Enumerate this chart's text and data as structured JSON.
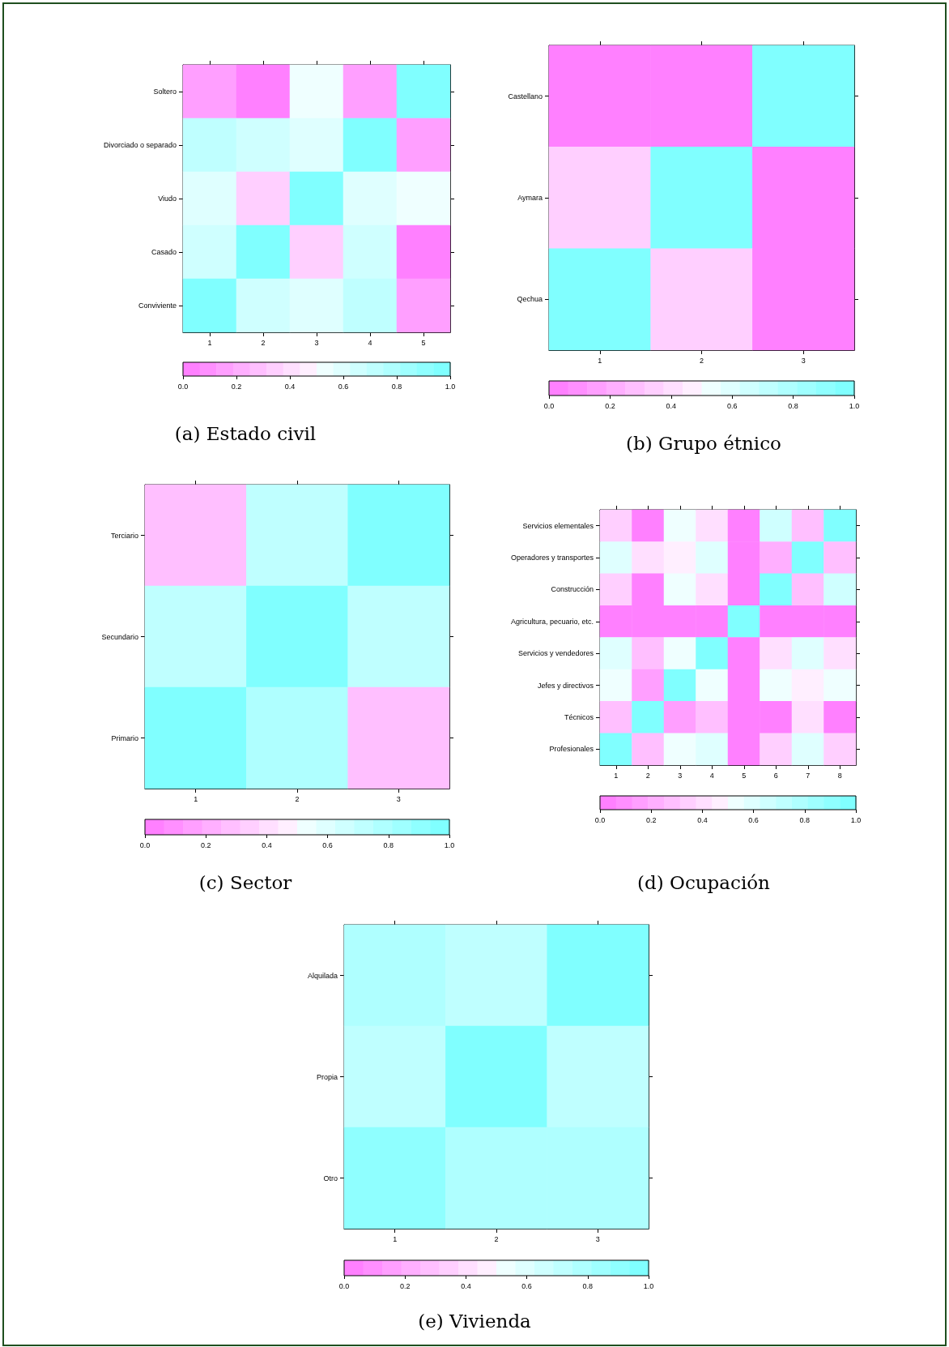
{
  "chart_data": [
    {
      "type": "heatmap",
      "title": "(a) Estado civil",
      "categories": [
        "1",
        "2",
        "3",
        "4",
        "5"
      ],
      "y_categories": [
        "Soltero",
        "Divorciado o separado",
        "Viudo",
        "Casado",
        "Conviviente"
      ],
      "cells": [
        [
          0.15,
          0.03,
          0.53,
          0.15,
          0.97
        ],
        [
          0.72,
          0.66,
          0.59,
          0.97,
          0.15
        ],
        [
          0.59,
          0.34,
          0.97,
          0.59,
          0.53
        ],
        [
          0.66,
          0.97,
          0.34,
          0.66,
          0.03
        ],
        [
          0.97,
          0.66,
          0.59,
          0.72,
          0.15
        ]
      ],
      "clim": [
        0,
        1
      ],
      "cticks": [
        {
          "value": 0,
          "label": "0.0"
        },
        {
          "value": 0.2,
          "label": "0.2"
        },
        {
          "value": 0.4,
          "label": "0.4"
        },
        {
          "value": 0.6,
          "label": "0.6"
        },
        {
          "value": 0.8,
          "label": "0.8"
        },
        {
          "value": 1,
          "label": "1.0"
        }
      ]
    },
    {
      "type": "heatmap",
      "title": "(b) Grupo étnico",
      "categories": [
        "1",
        "2",
        "3"
      ],
      "y_categories": [
        "Castellano",
        "Aymara",
        "Qechua"
      ],
      "cells": [
        [
          0.03,
          0.03,
          0.97
        ],
        [
          0.34,
          0.97,
          0.03
        ],
        [
          0.97,
          0.34,
          0.03
        ]
      ],
      "clim": [
        0,
        1
      ],
      "cticks": [
        {
          "value": 0,
          "label": "0.0"
        },
        {
          "value": 0.2,
          "label": "0.2"
        },
        {
          "value": 0.4,
          "label": "0.4"
        },
        {
          "value": 0.6,
          "label": "0.6"
        },
        {
          "value": 0.8,
          "label": "0.8"
        },
        {
          "value": 1,
          "label": "1.0"
        }
      ]
    },
    {
      "type": "heatmap",
      "title": "(c) Sector",
      "categories": [
        "1",
        "2",
        "3"
      ],
      "y_categories": [
        "Terciario",
        "Secundario",
        "Primario"
      ],
      "cells": [
        [
          0.28,
          0.72,
          0.97
        ],
        [
          0.72,
          0.97,
          0.72
        ],
        [
          0.97,
          0.78,
          0.28
        ]
      ],
      "clim": [
        0,
        1
      ],
      "cticks": [
        {
          "value": 0,
          "label": "0.0"
        },
        {
          "value": 0.2,
          "label": "0.2"
        },
        {
          "value": 0.4,
          "label": "0.4"
        },
        {
          "value": 0.6,
          "label": "0.6"
        },
        {
          "value": 0.8,
          "label": "0.8"
        },
        {
          "value": 1,
          "label": "1.0"
        }
      ]
    },
    {
      "type": "heatmap",
      "title": "(d) Ocupación",
      "categories": [
        "1",
        "2",
        "3",
        "4",
        "5",
        "6",
        "7",
        "8"
      ],
      "y_categories": [
        "Servicios elementales",
        "Operadores y transportes",
        "Construcción",
        "Agricultura, pecuario, etc.",
        "Servicios y vendedores",
        "Jefes y directivos",
        "Técnicos",
        "Profesionales"
      ],
      "cells": [
        [
          0.34,
          0.03,
          0.53,
          0.41,
          0.03,
          0.66,
          0.28,
          0.97
        ],
        [
          0.59,
          0.41,
          0.47,
          0.59,
          0.03,
          0.22,
          0.97,
          0.28
        ],
        [
          0.34,
          0.03,
          0.53,
          0.41,
          0.03,
          0.97,
          0.28,
          0.66
        ],
        [
          0.03,
          0.03,
          0.03,
          0.03,
          0.97,
          0.03,
          0.03,
          0.03
        ],
        [
          0.59,
          0.28,
          0.53,
          0.97,
          0.03,
          0.41,
          0.59,
          0.41
        ],
        [
          0.53,
          0.15,
          0.97,
          0.53,
          0.03,
          0.53,
          0.47,
          0.53
        ],
        [
          0.28,
          0.97,
          0.15,
          0.28,
          0.03,
          0.03,
          0.41,
          0.03
        ],
        [
          0.97,
          0.28,
          0.53,
          0.59,
          0.03,
          0.34,
          0.59,
          0.34
        ]
      ],
      "clim": [
        0,
        1
      ],
      "cticks": [
        {
          "value": 0,
          "label": "0.0"
        },
        {
          "value": 0.2,
          "label": "0.2"
        },
        {
          "value": 0.4,
          "label": "0.4"
        },
        {
          "value": 0.6,
          "label": "0.6"
        },
        {
          "value": 0.8,
          "label": "0.8"
        },
        {
          "value": 1,
          "label": "1.0"
        }
      ]
    },
    {
      "type": "heatmap",
      "title": "(e) Vivienda",
      "categories": [
        "1",
        "2",
        "3"
      ],
      "y_categories": [
        "Alquilada",
        "Propia",
        "Otro"
      ],
      "cells": [
        [
          0.78,
          0.72,
          0.97
        ],
        [
          0.72,
          0.97,
          0.72
        ],
        [
          0.91,
          0.78,
          0.78
        ]
      ],
      "clim": [
        0,
        1
      ],
      "cticks": [
        {
          "value": 0,
          "label": "0.0"
        },
        {
          "value": 0.2,
          "label": "0.2"
        },
        {
          "value": 0.4,
          "label": "0.4"
        },
        {
          "value": 0.6,
          "label": "0.6"
        },
        {
          "value": 0.8,
          "label": "0.8"
        },
        {
          "value": 1,
          "label": "1.0"
        }
      ]
    }
  ]
}
